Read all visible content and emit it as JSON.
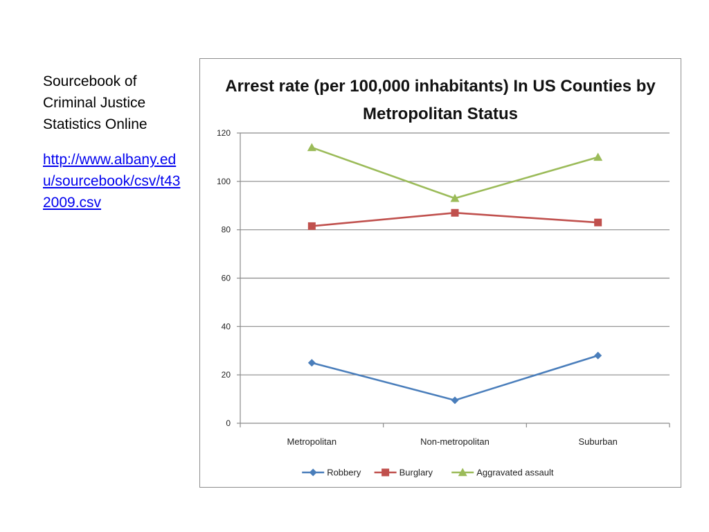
{
  "side": {
    "source_title": "Sourcebook of Criminal Justice Statistics Online",
    "source_url": "http://www.albany.edu/sourcebook/csv/t432009.csv"
  },
  "chart_data": {
    "type": "line",
    "title": "Arrest rate (per 100,000 inhabitants) In US Counties by Metropolitan Status",
    "xlabel": "",
    "ylabel": "",
    "categories": [
      "Metropolitan",
      "Non-metropolitan",
      "Suburban"
    ],
    "ylim": [
      0,
      120
    ],
    "yticks": [
      0,
      20,
      40,
      60,
      80,
      100,
      120
    ],
    "grid": true,
    "legend_position": "bottom",
    "series": [
      {
        "name": "Robbery",
        "values": [
          25,
          9.5,
          28
        ],
        "color": "#4a7ebb",
        "marker": "diamond"
      },
      {
        "name": "Burglary",
        "values": [
          81.5,
          87,
          83
        ],
        "color": "#c0504d",
        "marker": "square"
      },
      {
        "name": "Aggravated assault",
        "values": [
          114,
          93,
          110
        ],
        "color": "#9bbb59",
        "marker": "triangle"
      }
    ]
  }
}
